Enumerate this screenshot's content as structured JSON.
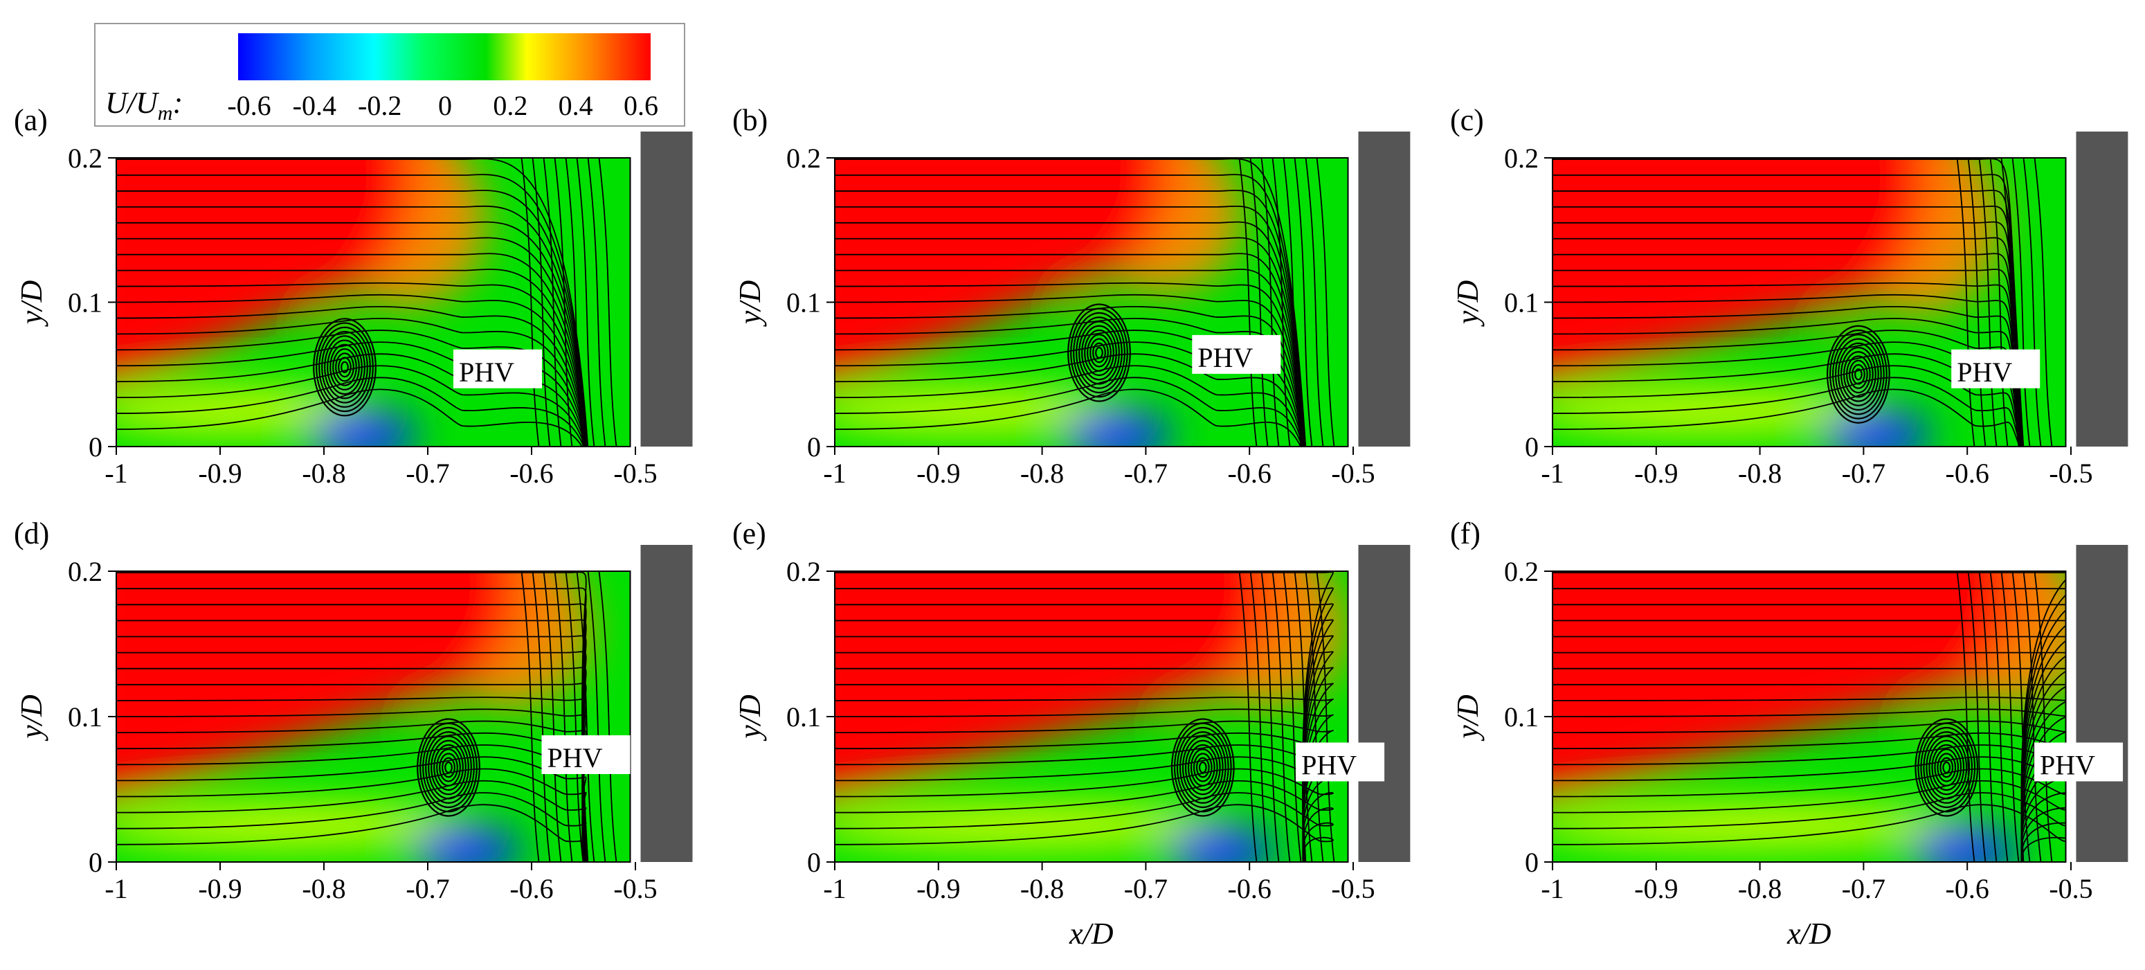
{
  "colorbar": {
    "title_main": "U/U",
    "title_sub": "m",
    "title_suffix": ":",
    "ticks": [
      -0.6,
      -0.4,
      -0.2,
      0,
      0.2,
      0.4,
      0.6
    ],
    "tick_labels": [
      "-0.6",
      "-0.4",
      "-0.2",
      "0",
      "0.2",
      "0.4",
      "0.6"
    ],
    "colors": [
      "#0000ff",
      "#00ffff",
      "#00e000",
      "#ffff00",
      "#ff0000"
    ]
  },
  "colors": {
    "high": "#ff0000",
    "orange": "#ff8a00",
    "yellow": "#e6ff00",
    "green": "#00e000",
    "blue": "#0033ff",
    "obstacle": "#555555",
    "streamline": "#000000"
  },
  "chart_data": [
    {
      "type": "heatmap",
      "panel": "(a)",
      "xlim": [
        -1,
        -0.5
      ],
      "ylim": [
        0,
        0.2
      ],
      "xticks": [
        "-1",
        "-0.9",
        "-0.8",
        "-0.7",
        "-0.6",
        "-0.5"
      ],
      "yticks": [
        "0",
        "0.1",
        "0.2"
      ],
      "xlabel": "",
      "ylabel": "y/D",
      "vortex": {
        "x": -0.78,
        "y": 0.055
      },
      "annotation": {
        "text": "PHV",
        "x": -0.67,
        "y": 0.05
      }
    },
    {
      "type": "heatmap",
      "panel": "(b)",
      "xlim": [
        -1,
        -0.5
      ],
      "ylim": [
        0,
        0.2
      ],
      "xticks": [
        "-1",
        "-0.9",
        "-0.8",
        "-0.7",
        "-0.6",
        "-0.5"
      ],
      "yticks": [
        "0",
        "0.1",
        "0.2"
      ],
      "xlabel": "",
      "ylabel": "y/D",
      "vortex": {
        "x": -0.745,
        "y": 0.065
      },
      "annotation": {
        "text": "PHV",
        "x": -0.65,
        "y": 0.06
      }
    },
    {
      "type": "heatmap",
      "panel": "(c)",
      "xlim": [
        -1,
        -0.5
      ],
      "ylim": [
        0,
        0.2
      ],
      "xticks": [
        "-1",
        "-0.9",
        "-0.8",
        "-0.7",
        "-0.6",
        "-0.5"
      ],
      "yticks": [
        "0",
        "0.1",
        "0.2"
      ],
      "xlabel": "",
      "ylabel": "y/D",
      "vortex": {
        "x": -0.705,
        "y": 0.05
      },
      "annotation": {
        "text": "PHV",
        "x": -0.61,
        "y": 0.05
      }
    },
    {
      "type": "heatmap",
      "panel": "(d)",
      "xlim": [
        -1,
        -0.5
      ],
      "ylim": [
        0,
        0.2
      ],
      "xticks": [
        "-1",
        "-0.9",
        "-0.8",
        "-0.7",
        "-0.6",
        "-0.5"
      ],
      "yticks": [
        "0",
        "0.1",
        "0.2"
      ],
      "xlabel": "",
      "ylabel": "y/D",
      "vortex": {
        "x": -0.68,
        "y": 0.065
      },
      "annotation": {
        "text": "PHV",
        "x": -0.585,
        "y": 0.07
      }
    },
    {
      "type": "heatmap",
      "panel": "(e)",
      "xlim": [
        -1,
        -0.5
      ],
      "ylim": [
        0,
        0.2
      ],
      "xticks": [
        "-1",
        "-0.9",
        "-0.8",
        "-0.7",
        "-0.6",
        "-0.5"
      ],
      "yticks": [
        "0",
        "0.1",
        "0.2"
      ],
      "xlabel": "x/D",
      "ylabel": "y/D",
      "vortex": {
        "x": -0.645,
        "y": 0.065
      },
      "annotation": {
        "text": "PHV",
        "x": -0.55,
        "y": 0.065
      }
    },
    {
      "type": "heatmap",
      "panel": "(f)",
      "xlim": [
        -1,
        -0.5
      ],
      "ylim": [
        0,
        0.2
      ],
      "xticks": [
        "-1",
        "-0.9",
        "-0.8",
        "-0.7",
        "-0.6",
        "-0.5"
      ],
      "yticks": [
        "0",
        "0.1",
        "0.2"
      ],
      "xlabel": "x/D",
      "ylabel": "y/D",
      "vortex": {
        "x": -0.62,
        "y": 0.065
      },
      "annotation": {
        "text": "PHV",
        "x": -0.53,
        "y": 0.065
      }
    }
  ]
}
